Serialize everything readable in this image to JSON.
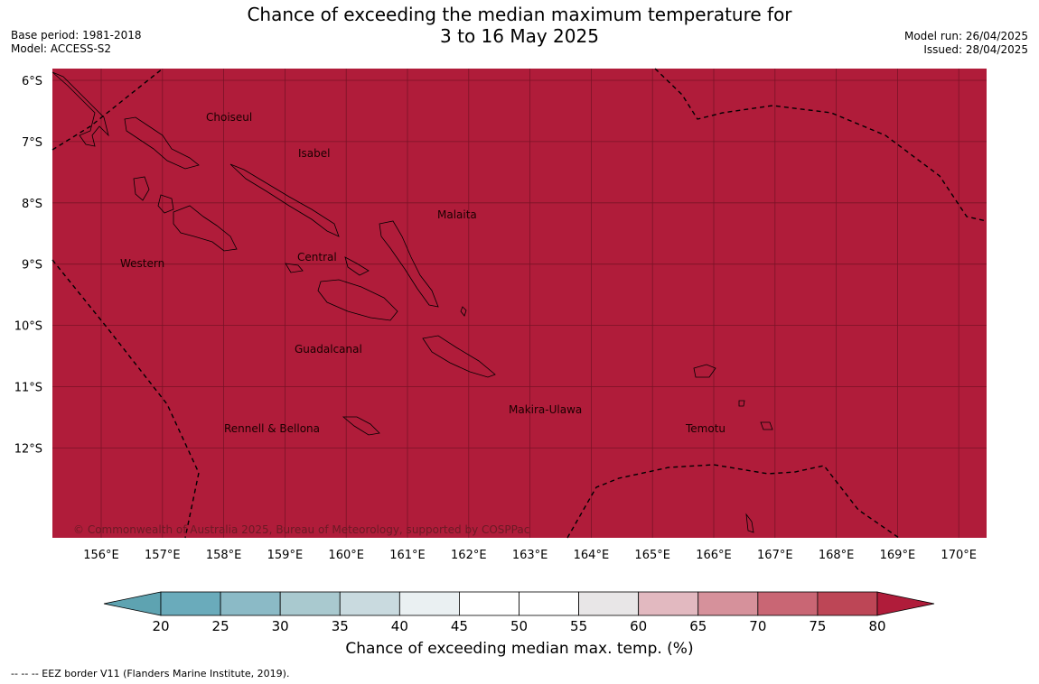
{
  "title_line1": "Chance of exceeding the median maximum temperature for",
  "title_line2": "3 to 16 May 2025",
  "base_period": "Base period: 1981-2018",
  "model": "Model: ACCESS-S2",
  "model_run": "Model run: 26/04/2025",
  "issued": "Issued: 28/04/2025",
  "map": {
    "fill_color": "#b01c3a",
    "gridline_color": "#7a1226",
    "lat_labels": [
      "6°S",
      "7°S",
      "8°S",
      "9°S",
      "10°S",
      "11°S",
      "12°S"
    ],
    "lon_labels": [
      "156°E",
      "157°E",
      "158°E",
      "159°E",
      "160°E",
      "161°E",
      "162°E",
      "163°E",
      "164°E",
      "165°E",
      "166°E",
      "167°E",
      "168°E",
      "169°E",
      "170°E"
    ],
    "regions": [
      "Choiseul",
      "Isabel",
      "Malaita",
      "Western",
      "Central",
      "Guadalcanal",
      "Makira-Ulawa",
      "Rennell & Bellona",
      "Temotu"
    ],
    "copyright": "© Commonwealth of Australia 2025, Bureau of Meteorology, supported by COSPPac"
  },
  "colorbar": {
    "label": "Chance of exceeding median max. temp. (%)",
    "ticks": [
      "20",
      "25",
      "30",
      "35",
      "40",
      "45",
      "50",
      "55",
      "60",
      "65",
      "70",
      "75",
      "80"
    ],
    "under_color": "#5ea3b1",
    "over_color": "#b01c3a",
    "bin_colors": [
      "#6aabbb",
      "#8bbac6",
      "#a9c9cf",
      "#c9dadf",
      "#eaf0f2",
      "#ffffff",
      "#ffffff",
      "#e8e6e7",
      "#e2b9c0",
      "#d6919b",
      "#c96674",
      "#bd4656"
    ]
  },
  "footnote": "--  --  -- EEZ border V11 (Flanders Marine Institute, 2019)."
}
